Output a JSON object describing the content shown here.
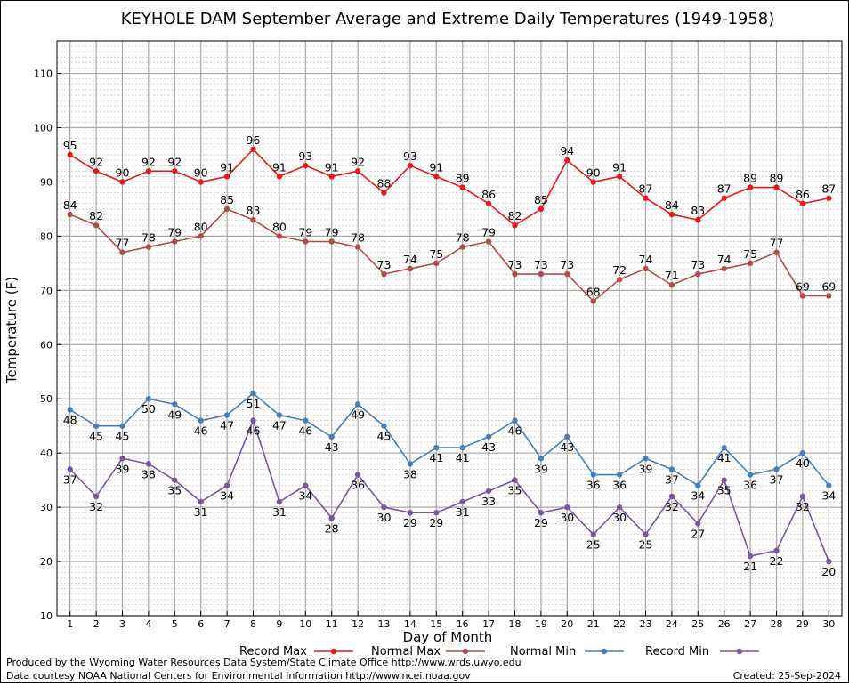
{
  "chart_data": {
    "type": "line",
    "title": "KEYHOLE DAM September Average and Extreme Daily Temperatures (1949-1958)",
    "xlabel": "Day of Month",
    "ylabel": "Temperature (F)",
    "x": [
      1,
      2,
      3,
      4,
      5,
      6,
      7,
      8,
      9,
      10,
      11,
      12,
      13,
      14,
      15,
      16,
      17,
      18,
      19,
      20,
      21,
      22,
      23,
      24,
      25,
      26,
      27,
      28,
      29,
      30
    ],
    "ylim": [
      10,
      116
    ],
    "yticks": [
      10,
      20,
      30,
      40,
      50,
      60,
      70,
      80,
      90,
      100,
      110
    ],
    "grid": true,
    "legend_placement": "bottom",
    "series": [
      {
        "name": "Record Max",
        "color": "#e8191d",
        "label_pos": "above",
        "values": [
          95,
          92,
          90,
          92,
          92,
          90,
          91,
          96,
          91,
          93,
          91,
          92,
          88,
          93,
          91,
          89,
          86,
          82,
          85,
          94,
          90,
          91,
          87,
          84,
          83,
          87,
          89,
          89,
          86,
          87
        ]
      },
      {
        "name": "Normal Max",
        "color": "#b24c4c",
        "label_pos": "above",
        "values": [
          84,
          82,
          77,
          78,
          79,
          80,
          85,
          83,
          80,
          79,
          79,
          78,
          73,
          74,
          75,
          78,
          79,
          73,
          73,
          73,
          68,
          72,
          74,
          71,
          73,
          74,
          75,
          77,
          69,
          69
        ]
      },
      {
        "name": "Normal Min",
        "color": "#4a7fb5",
        "label_pos": "below",
        "values": [
          48,
          45,
          45,
          50,
          49,
          46,
          47,
          51,
          47,
          46,
          43,
          49,
          45,
          38,
          41,
          41,
          43,
          46,
          39,
          43,
          36,
          36,
          39,
          37,
          34,
          41,
          36,
          37,
          40,
          34
        ]
      },
      {
        "name": "Record Min",
        "color": "#7a55a0",
        "label_pos": "below",
        "values": [
          37,
          32,
          39,
          38,
          35,
          31,
          34,
          46,
          31,
          34,
          28,
          36,
          30,
          29,
          29,
          31,
          33,
          35,
          29,
          30,
          25,
          30,
          25,
          32,
          27,
          35,
          21,
          22,
          32,
          20
        ]
      }
    ]
  },
  "footer": {
    "produced_by": "Produced by the Wyoming Water Resources Data System/State Climate Office http://www.wrds.uwyo.edu",
    "courtesy": "Data courtesy NOAA National Centers for Environmental Information http://www.ncei.noaa.gov",
    "created": "Created:  25-Sep-2024"
  }
}
